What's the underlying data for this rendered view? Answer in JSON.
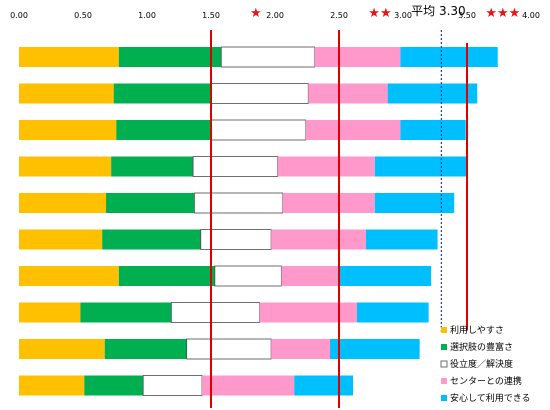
{
  "chart_data": {
    "type": "bar",
    "stacked": true,
    "orientation": "horizontal",
    "x_ticks": [
      "0.00",
      "0.50",
      "1.00",
      "1.50",
      "2.00",
      "2.50",
      "3.00",
      "3.50",
      "4.00"
    ],
    "xlim": [
      0,
      4
    ],
    "grid": false,
    "legend_position": "bottom-right",
    "rows": 10,
    "series": [
      {
        "name": "利用しやすさ",
        "color": "#ffc000",
        "values": [
          0.78,
          0.74,
          0.76,
          0.72,
          0.68,
          0.65,
          0.78,
          0.48,
          0.67,
          0.51
        ]
      },
      {
        "name": "選択肢の豊富さ",
        "color": "#00b050",
        "values": [
          0.8,
          0.76,
          0.74,
          0.64,
          0.69,
          0.77,
          0.75,
          0.71,
          0.64,
          0.46
        ]
      },
      {
        "name": "役立度／解決度",
        "color": "#ffffff",
        "values": [
          0.73,
          0.76,
          0.74,
          0.66,
          0.69,
          0.55,
          0.52,
          0.69,
          0.66,
          0.46
        ]
      },
      {
        "name": "センターとの連携",
        "color": "#ff99cc",
        "values": [
          0.67,
          0.62,
          0.74,
          0.76,
          0.72,
          0.74,
          0.44,
          0.76,
          0.46,
          0.72
        ]
      },
      {
        "name": "安心して利用できる",
        "color": "#00bfff",
        "values": [
          0.76,
          0.7,
          0.51,
          0.72,
          0.62,
          0.56,
          0.73,
          0.56,
          0.7,
          0.46
        ]
      }
    ],
    "reference_lines": [
      {
        "value": 1.5,
        "style": "solid",
        "color": "#e00000"
      },
      {
        "value": 2.5,
        "style": "solid",
        "color": "#e00000"
      },
      {
        "value": 3.3,
        "style": "dashed",
        "color": "#1f3d99",
        "label": "平均 3.30"
      },
      {
        "value": 3.5,
        "style": "solid",
        "color": "#e00000",
        "rows": "1-8"
      }
    ],
    "annotations": [
      {
        "text": "★",
        "x": 1.85
      },
      {
        "text": "★★",
        "x": 2.82
      },
      {
        "text": "★★★",
        "x": 3.78
      }
    ]
  }
}
